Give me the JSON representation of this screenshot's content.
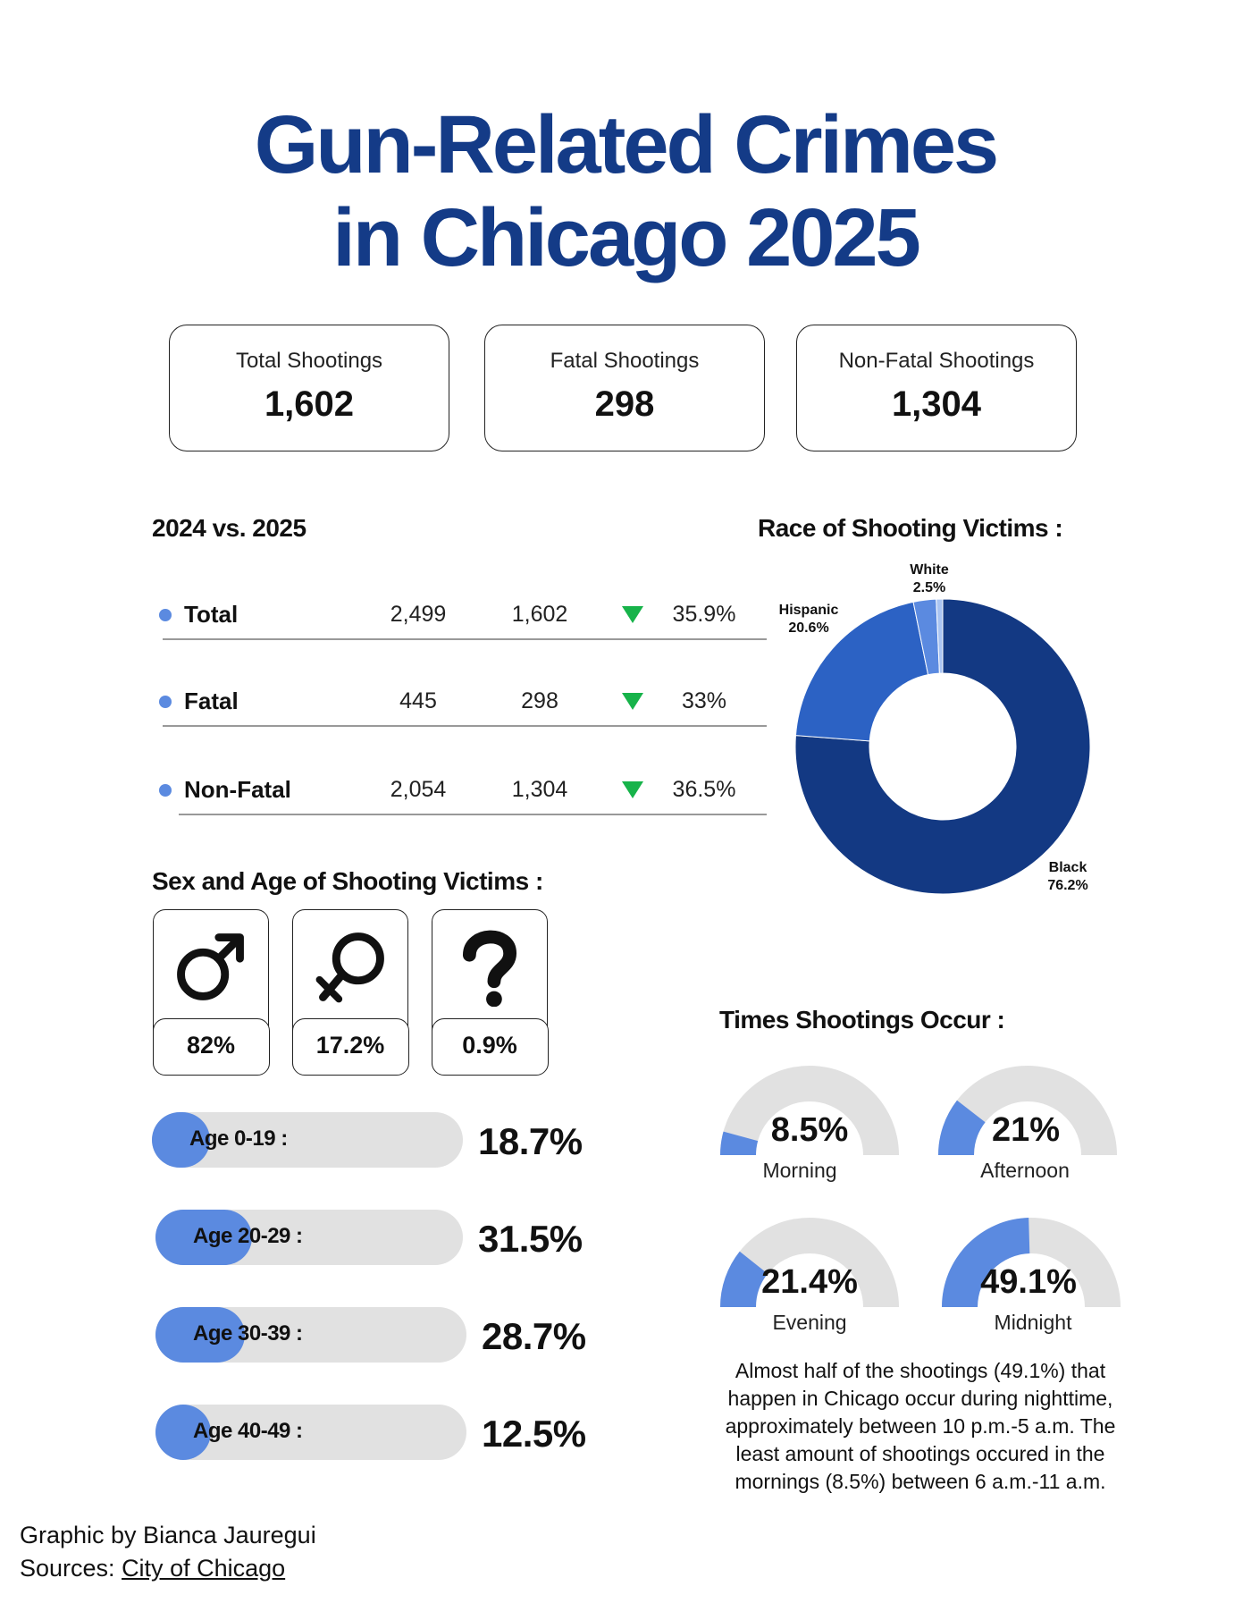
{
  "title_line1": "Gun-Related Crimes",
  "title_line2": "in Chicago 2025",
  "stats": [
    {
      "label": "Total Shootings",
      "value": "1,602"
    },
    {
      "label": "Fatal Shootings",
      "value": "298"
    },
    {
      "label": "Non-Fatal Shootings",
      "value": "1,304"
    }
  ],
  "comparison": {
    "heading": "2024 vs. 2025",
    "rows": [
      {
        "label": "Total",
        "v2024": "2,499",
        "v2025": "1,602",
        "change": "35.9%"
      },
      {
        "label": "Fatal",
        "v2024": "445",
        "v2025": "298",
        "change": "33%"
      },
      {
        "label": "Non-Fatal",
        "v2024": "2,054",
        "v2025": "1,304",
        "change": "36.5%"
      }
    ],
    "decrease_color": "#17b34a"
  },
  "sex": {
    "heading": "Sex  and Age of Shooting Victims :",
    "items": [
      {
        "icon": "male-symbol-icon",
        "value": "82%"
      },
      {
        "icon": "female-symbol-icon",
        "value": "17.2%"
      },
      {
        "icon": "question-mark-icon",
        "value": "0.9%"
      }
    ]
  },
  "ages": [
    {
      "label": "Age 0-19 :",
      "pct": "18.7%",
      "value": 18.7
    },
    {
      "label": "Age 20-29 :",
      "pct": "31.5%",
      "value": 31.5
    },
    {
      "label": "Age 30-39 :",
      "pct": "28.7%",
      "value": 28.7
    },
    {
      "label": "Age 40-49 :",
      "pct": "12.5%",
      "value": 12.5
    }
  ],
  "race": {
    "heading": "Race of Shooting Victims :",
    "slices": [
      {
        "name": "Black",
        "pct": "76.2%",
        "value": 76.2,
        "color": "#133983"
      },
      {
        "name": "Hispanic",
        "pct": "20.6%",
        "value": 20.6,
        "color": "#2c62c4"
      },
      {
        "name": "White",
        "pct": "2.5%",
        "value": 2.5,
        "color": "#5b8ae0"
      },
      {
        "name": "",
        "pct": "",
        "value": 0.7,
        "color": "#a9c4f2"
      }
    ]
  },
  "times": {
    "heading": "Times Shootings Occur :",
    "items": [
      {
        "label": "Morning",
        "pct": "8.5%",
        "value": 8.5
      },
      {
        "label": "Afternoon",
        "pct": "21%",
        "value": 21
      },
      {
        "label": "Evening",
        "pct": "21.4%",
        "value": 21.4
      },
      {
        "label": "Midnight",
        "pct": "49.1%",
        "value": 49.1
      }
    ],
    "note": "Almost half of the shootings (49.1%) that happen in Chicago occur during nighttime, approximately between 10 p.m.-5 a.m. The least amount of shootings occured in the mornings (8.5%) between 6 a.m.-11 a.m."
  },
  "credit": {
    "byline": "Graphic by Bianca Jauregui",
    "sources_prefix": "Sources: ",
    "sources_link": "City of Chicago"
  },
  "colors": {
    "title": "#143b87",
    "accent": "#5b8ae0",
    "track": "#e1e1e1"
  },
  "chart_data": [
    {
      "type": "pie",
      "title": "Race of Shooting Victims :",
      "categories": [
        "Black",
        "Hispanic",
        "White"
      ],
      "values": [
        76.2,
        20.6,
        2.5
      ]
    },
    {
      "type": "bar",
      "title": "Sex  and Age of Shooting Victims :",
      "categories": [
        "Age 0-19",
        "Age 20-29",
        "Age 30-39",
        "Age 40-49"
      ],
      "values": [
        18.7,
        31.5,
        28.7,
        12.5
      ]
    },
    {
      "type": "bar",
      "title": "Times Shootings Occur :",
      "categories": [
        "Morning",
        "Afternoon",
        "Evening",
        "Midnight"
      ],
      "values": [
        8.5,
        21,
        21.4,
        49.1
      ]
    },
    {
      "type": "table",
      "title": "2024 vs. 2025",
      "categories": [
        "Total",
        "Fatal",
        "Non-Fatal"
      ],
      "series": [
        {
          "name": "2024",
          "values": [
            2499,
            445,
            2054
          ]
        },
        {
          "name": "2025",
          "values": [
            1602,
            298,
            1304
          ]
        }
      ]
    }
  ]
}
